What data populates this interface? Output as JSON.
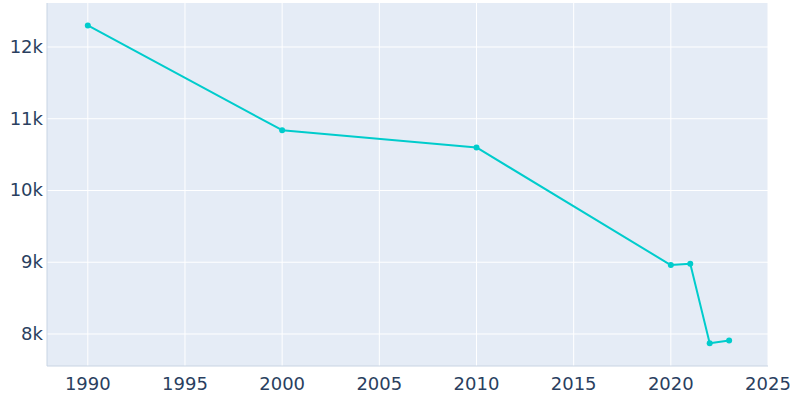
{
  "chart_data": {
    "type": "line",
    "x": [
      1990,
      2000,
      2010,
      2020,
      2021,
      2022,
      2023
    ],
    "values": [
      12300,
      10840,
      10600,
      8960,
      8980,
      7870,
      7910
    ],
    "color": "#00cccc",
    "marker": "circle",
    "xlim": [
      1987.9,
      2025
    ],
    "xticks": [
      1990,
      1995,
      2000,
      2005,
      2010,
      2015,
      2020,
      2025
    ],
    "ylim": [
      7554,
      12613
    ],
    "yticks": [
      {
        "value": 8000,
        "label": "8k"
      },
      {
        "value": 9000,
        "label": "9k"
      },
      {
        "value": 10000,
        "label": "10k"
      },
      {
        "value": 11000,
        "label": "11k"
      },
      {
        "value": 12000,
        "label": "12k"
      }
    ],
    "grid": true
  }
}
